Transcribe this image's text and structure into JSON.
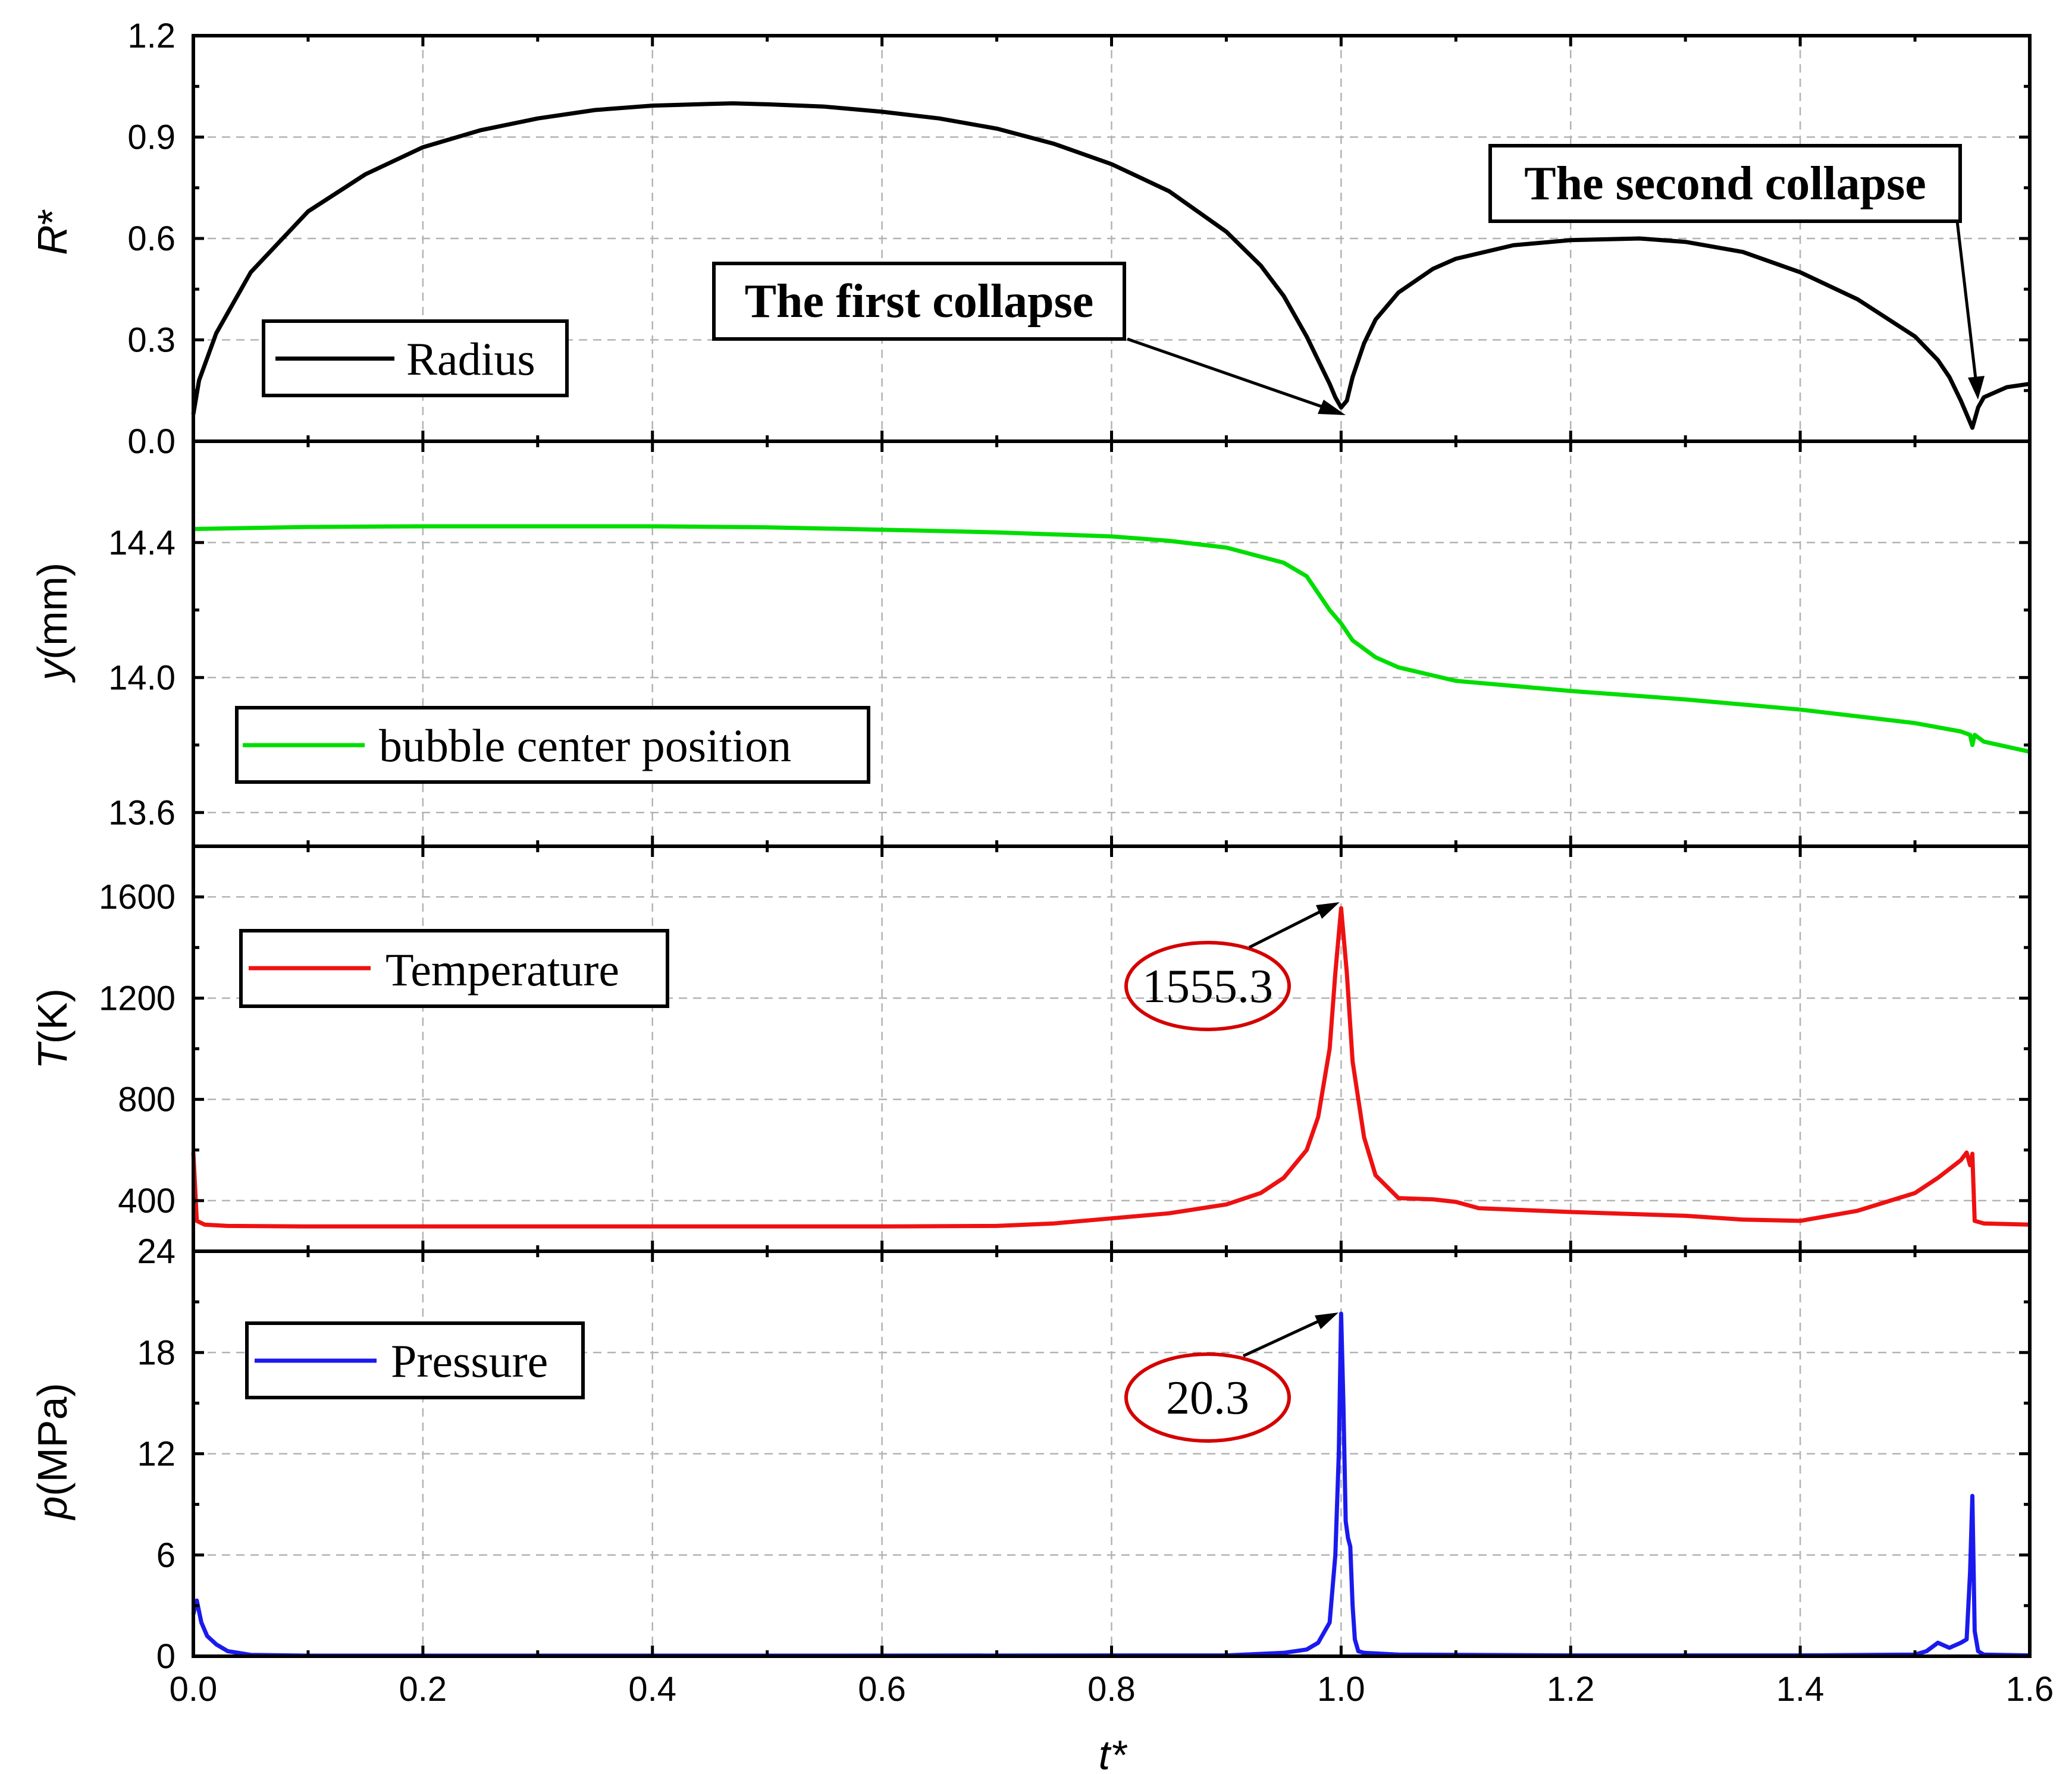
{
  "chart_data": {
    "type": "line",
    "shared_x": {
      "label": "t*",
      "range": [
        0.0,
        1.6
      ],
      "ticks": [
        0.0,
        0.2,
        0.4,
        0.6,
        0.8,
        1.0,
        1.2,
        1.4,
        1.6
      ],
      "tick_labels": [
        "0.0",
        "0.2",
        "0.4",
        "0.6",
        "0.8",
        "1.0",
        "1.2",
        "1.4",
        "1.6"
      ]
    },
    "panels": [
      {
        "id": "radius",
        "ylabel_var": "R",
        "ylabel_rest": "*",
        "ylim": [
          0.0,
          1.2
        ],
        "yticks": [
          0.0,
          0.3,
          0.6,
          0.9,
          1.2
        ],
        "ytick_labels": [
          "0.0",
          "0.3",
          "0.6",
          "0.9",
          "1.2"
        ],
        "series": {
          "name": "Radius",
          "color": "#000000",
          "x": [
            0,
            0.005,
            0.02,
            0.05,
            0.1,
            0.15,
            0.2,
            0.25,
            0.3,
            0.35,
            0.4,
            0.45,
            0.47,
            0.5,
            0.55,
            0.6,
            0.65,
            0.7,
            0.75,
            0.8,
            0.85,
            0.9,
            0.93,
            0.95,
            0.97,
            0.98,
            0.99,
            0.995,
            1.0,
            1.005,
            1.01,
            1.02,
            1.03,
            1.05,
            1.08,
            1.1,
            1.15,
            1.2,
            1.26,
            1.3,
            1.35,
            1.4,
            1.45,
            1.5,
            1.52,
            1.53,
            1.54,
            1.545,
            1.55,
            1.555,
            1.56,
            1.58,
            1.6
          ],
          "y": [
            0.08,
            0.18,
            0.32,
            0.5,
            0.68,
            0.79,
            0.87,
            0.92,
            0.955,
            0.98,
            0.993,
            0.998,
            1.0,
            0.997,
            0.99,
            0.975,
            0.955,
            0.925,
            0.88,
            0.82,
            0.74,
            0.62,
            0.52,
            0.43,
            0.31,
            0.24,
            0.17,
            0.13,
            0.1,
            0.12,
            0.19,
            0.29,
            0.36,
            0.44,
            0.51,
            0.54,
            0.58,
            0.595,
            0.6,
            0.59,
            0.56,
            0.5,
            0.42,
            0.31,
            0.24,
            0.19,
            0.12,
            0.08,
            0.04,
            0.1,
            0.13,
            0.16,
            0.17
          ]
        },
        "legend": "Radius",
        "annotations": [
          {
            "text": "The first collapse",
            "x": 1.0,
            "y": 0.1
          },
          {
            "text": "The second collapse",
            "x": 1.55,
            "y": 0.12
          }
        ]
      },
      {
        "id": "position",
        "ylabel_var": "y",
        "ylabel_rest": "(mm)",
        "ylim": [
          13.5,
          14.7
        ],
        "yticks": [
          13.6,
          14.0,
          14.4
        ],
        "ytick_labels": [
          "13.6",
          "14.0",
          "14.4"
        ],
        "series": {
          "name": "bubble center position",
          "color": "#00dd00",
          "x": [
            0,
            0.1,
            0.2,
            0.3,
            0.4,
            0.5,
            0.6,
            0.7,
            0.8,
            0.85,
            0.9,
            0.95,
            0.97,
            0.99,
            1.0,
            1.01,
            1.03,
            1.05,
            1.1,
            1.2,
            1.3,
            1.4,
            1.5,
            1.54,
            1.548,
            1.55,
            1.552,
            1.56,
            1.6
          ],
          "y": [
            14.44,
            14.446,
            14.448,
            14.448,
            14.448,
            14.445,
            14.438,
            14.43,
            14.418,
            14.405,
            14.385,
            14.34,
            14.3,
            14.2,
            14.16,
            14.11,
            14.06,
            14.03,
            13.99,
            13.96,
            13.935,
            13.905,
            13.865,
            13.84,
            13.83,
            13.8,
            13.83,
            13.81,
            13.78
          ]
        },
        "legend": "bubble center position"
      },
      {
        "id": "temperature",
        "ylabel_var": "T",
        "ylabel_rest": "(K)",
        "ylim": [
          200,
          1800
        ],
        "yticks": [
          400,
          800,
          1200,
          1600
        ],
        "ytick_labels": [
          "400",
          "800",
          "1200",
          "1600"
        ],
        "series": {
          "name": "Temperature",
          "color": "#ee1111",
          "x": [
            0,
            0.003,
            0.01,
            0.03,
            0.1,
            0.3,
            0.5,
            0.6,
            0.7,
            0.75,
            0.8,
            0.85,
            0.9,
            0.93,
            0.95,
            0.97,
            0.98,
            0.99,
            0.995,
            1.0,
            1.005,
            1.01,
            1.02,
            1.03,
            1.05,
            1.08,
            1.1,
            1.12,
            1.2,
            1.3,
            1.35,
            1.4,
            1.45,
            1.5,
            1.52,
            1.54,
            1.545,
            1.548,
            1.55,
            1.552,
            1.56,
            1.6
          ],
          "y": [
            590,
            320,
            305,
            300,
            298,
            298,
            298,
            298,
            300,
            310,
            330,
            350,
            385,
            430,
            490,
            600,
            730,
            1000,
            1300,
            1555.3,
            1300,
            950,
            650,
            500,
            410,
            405,
            395,
            370,
            355,
            340,
            325,
            320,
            360,
            430,
            490,
            560,
            590,
            540,
            585,
            320,
            310,
            305
          ]
        },
        "legend": "Temperature",
        "peak": {
          "label": "1555.3",
          "x": 1.0,
          "y": 1555.3
        }
      },
      {
        "id": "pressure",
        "ylabel_var": "p",
        "ylabel_rest": "(MPa)",
        "ylim": [
          0,
          24
        ],
        "yticks": [
          0,
          6,
          12,
          18,
          24
        ],
        "ytick_labels": [
          "0",
          "6",
          "12",
          "18",
          "24"
        ],
        "series": {
          "name": "Pressure",
          "color": "#1a1aee",
          "x": [
            0,
            0.003,
            0.007,
            0.012,
            0.02,
            0.03,
            0.05,
            0.1,
            0.5,
            0.9,
            0.95,
            0.97,
            0.98,
            0.99,
            0.995,
            0.998,
            1.0,
            1.002,
            1.004,
            1.006,
            1.008,
            1.01,
            1.012,
            1.015,
            1.02,
            1.05,
            1.2,
            1.4,
            1.5,
            1.51,
            1.52,
            1.53,
            1.54,
            1.545,
            1.548,
            1.55,
            1.552,
            1.555,
            1.56,
            1.6
          ],
          "y": [
            2.5,
            3.3,
            2.0,
            1.2,
            0.7,
            0.3,
            0.08,
            0.03,
            0.03,
            0.05,
            0.2,
            0.4,
            0.8,
            2.0,
            6.0,
            12.0,
            20.3,
            15.0,
            8.0,
            7.0,
            6.5,
            3.0,
            1.0,
            0.3,
            0.2,
            0.1,
            0.05,
            0.05,
            0.1,
            0.3,
            0.8,
            0.5,
            0.8,
            1.0,
            5.0,
            9.5,
            1.5,
            0.3,
            0.1,
            0.05
          ]
        },
        "legend": "Pressure",
        "peak": {
          "label": "20.3",
          "x": 1.0,
          "y": 20.3
        }
      }
    ]
  }
}
